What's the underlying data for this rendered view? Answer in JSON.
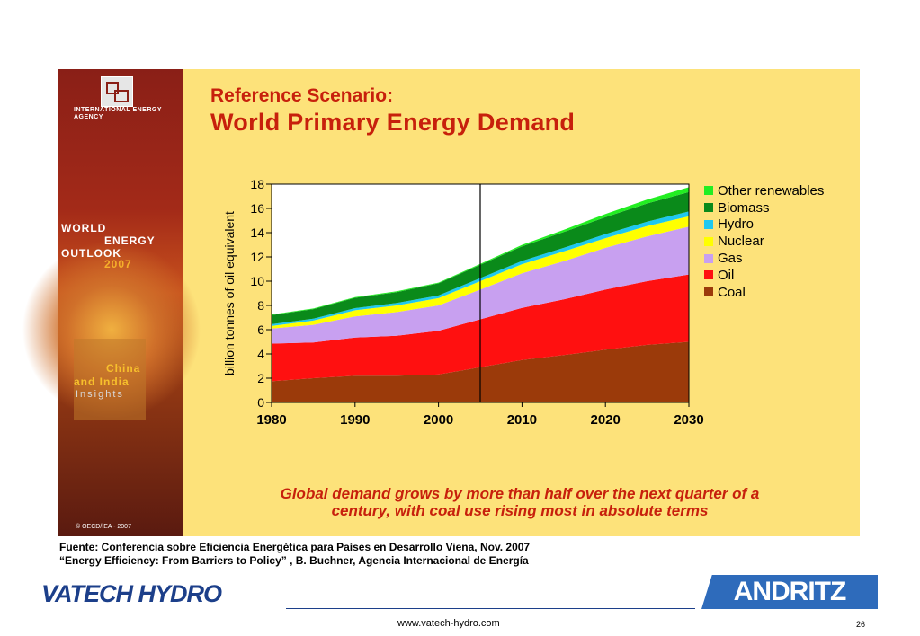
{
  "slide": {
    "iea_name": "INTERNATIONAL ENERGY AGENCY",
    "cover_line1": "WORLD",
    "cover_line2": "ENERGY",
    "cover_line3": "OUTLOOK",
    "cover_year": "2007",
    "cover_insight1": "China",
    "cover_insight2": "and India",
    "cover_insight3": "Insights",
    "copyright": "© OECD/IEA - 2007",
    "title_line1": "Reference Scenario:",
    "title_line2": "World Primary Energy Demand",
    "note_line1": "Global demand grows by more than half over the next quarter of a",
    "note_line2": "century, with coal use rising most in absolute terms"
  },
  "footer": {
    "source_line1": "Fuente: Conferencia sobre Eficiencia Energética para Países en Desarrollo Viena, Nov. 2007",
    "source_line2": "“Energy Efficiency: From Barriers to Policy” , B. Buchner, Agencia Internacional de Energía",
    "logo_vatech": "VATECH",
    "logo_hydro": "HYDRO",
    "logo_andritz": "ANDRITZ",
    "url": "www.vatech-hydro.com",
    "page_number": "26"
  },
  "colors": {
    "title_red": "#c7200c",
    "slide_bg": "#fde27a",
    "brand_blue": "#1c3f8a",
    "andritz_blue": "#2e6bbb"
  },
  "chart_data": {
    "type": "area",
    "stacked": true,
    "ylabel": "billion tonnes of oil equivalent",
    "xlabel": "",
    "xlim": [
      1980,
      2030
    ],
    "ylim": [
      0,
      18
    ],
    "xticks": [
      1980,
      1990,
      2000,
      2010,
      2020,
      2030
    ],
    "yticks": [
      0,
      2,
      4,
      6,
      8,
      10,
      12,
      14,
      16,
      18
    ],
    "grid": false,
    "legend_position": "right",
    "reference_line_x": 2005,
    "x": [
      1980,
      1985,
      1990,
      1995,
      2000,
      2005,
      2010,
      2015,
      2020,
      2025,
      2030
    ],
    "series": [
      {
        "name": "Coal",
        "color": "#9b3a0a",
        "values": [
          1.75,
          2.0,
          2.2,
          2.2,
          2.3,
          2.9,
          3.5,
          3.9,
          4.35,
          4.75,
          5.0
        ]
      },
      {
        "name": "Oil",
        "color": "#ff1010",
        "values": [
          3.1,
          2.95,
          3.15,
          3.3,
          3.6,
          3.95,
          4.3,
          4.6,
          4.95,
          5.25,
          5.55
        ]
      },
      {
        "name": "Gas",
        "color": "#c8a0f0",
        "values": [
          1.25,
          1.45,
          1.75,
          1.95,
          2.1,
          2.45,
          2.85,
          3.15,
          3.45,
          3.7,
          3.95
        ]
      },
      {
        "name": "Nuclear",
        "color": "#ffff00",
        "values": [
          0.2,
          0.35,
          0.5,
          0.55,
          0.6,
          0.7,
          0.75,
          0.8,
          0.8,
          0.85,
          0.85
        ]
      },
      {
        "name": "Hydro",
        "color": "#1ec8f0",
        "values": [
          0.15,
          0.15,
          0.18,
          0.2,
          0.22,
          0.25,
          0.27,
          0.3,
          0.33,
          0.36,
          0.4
        ]
      },
      {
        "name": "Biomass",
        "color": "#0a8a1a",
        "values": [
          0.75,
          0.8,
          0.85,
          0.9,
          1.0,
          1.1,
          1.2,
          1.3,
          1.4,
          1.5,
          1.6
        ]
      },
      {
        "name": "Other renewables",
        "color": "#22ee22",
        "values": [
          0.05,
          0.05,
          0.05,
          0.06,
          0.06,
          0.07,
          0.12,
          0.18,
          0.25,
          0.32,
          0.4
        ]
      }
    ]
  }
}
